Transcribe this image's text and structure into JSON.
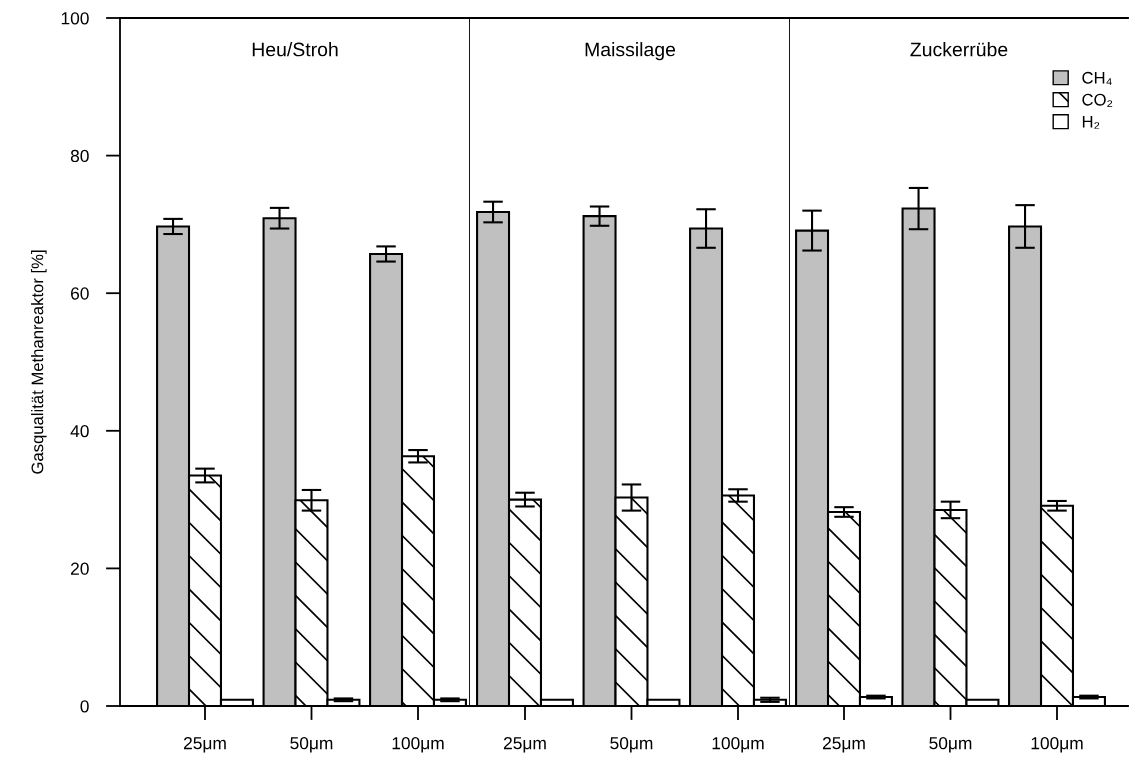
{
  "chart_data": [
    {
      "type": "bar",
      "title": "Heu/Stroh",
      "ylabel": "Gasqualität Methanreaktor [%]",
      "categories": [
        "25μm",
        "50μm",
        "100μm"
      ],
      "ylim": [
        0,
        100
      ],
      "yticks": [
        0,
        20,
        40,
        60,
        80,
        100
      ],
      "grid": false,
      "series": [
        {
          "color": "#c0c0c0",
          "values": [
            69.7,
            70.9,
            65.7
          ],
          "errors": [
            1.1,
            1.5,
            1.1
          ]
        },
        {
          "color": "#ffffff",
          "values": [
            33.5,
            29.9,
            36.3
          ],
          "errors": [
            1.0,
            1.5,
            0.9
          ]
        },
        {
          "color": "#ffffff",
          "values": [
            0.9,
            0.9,
            0.9
          ],
          "errors": [
            null,
            0.2,
            0.2
          ]
        }
      ]
    },
    {
      "type": "bar",
      "title": "Maissilage",
      "categories": [
        "25μm",
        "50μm",
        "100μm"
      ],
      "ylim": [
        0,
        100
      ],
      "tick_labels": "x",
      "grid": false,
      "series": [
        {
          "color": "#c0c0c0",
          "values": [
            71.8,
            71.2,
            69.4
          ],
          "errors": [
            1.5,
            1.4,
            2.8
          ]
        },
        {
          "color": "#ffffff",
          "values": [
            30.0,
            30.3,
            30.6
          ],
          "errors": [
            1.0,
            1.9,
            0.9
          ]
        },
        {
          "color": "#ffffff",
          "values": [
            0.9,
            0.9,
            0.9
          ],
          "errors": [
            null,
            null,
            0.3
          ]
        }
      ]
    },
    {
      "type": "bar",
      "title": "Zuckerrübe",
      "categories": [
        "25μm",
        "50μm",
        "100μm"
      ],
      "ylim": [
        0,
        100
      ],
      "tick_labels": "x",
      "grid": false,
      "legend": "top right",
      "series": [
        {
          "name": "CH₄",
          "color": "#c0c0c0",
          "values": [
            69.1,
            72.3,
            69.7
          ],
          "errors": [
            2.9,
            3.0,
            3.1
          ]
        },
        {
          "name": "CO₂",
          "color": "#ffffff",
          "values": [
            28.2,
            28.5,
            29.1
          ],
          "errors": [
            0.7,
            1.2,
            0.7
          ]
        },
        {
          "name": "H₂",
          "color": "#ffffff",
          "values": [
            1.3,
            0.9,
            1.3
          ],
          "errors": [
            0.2,
            null,
            0.2
          ]
        }
      ]
    }
  ]
}
